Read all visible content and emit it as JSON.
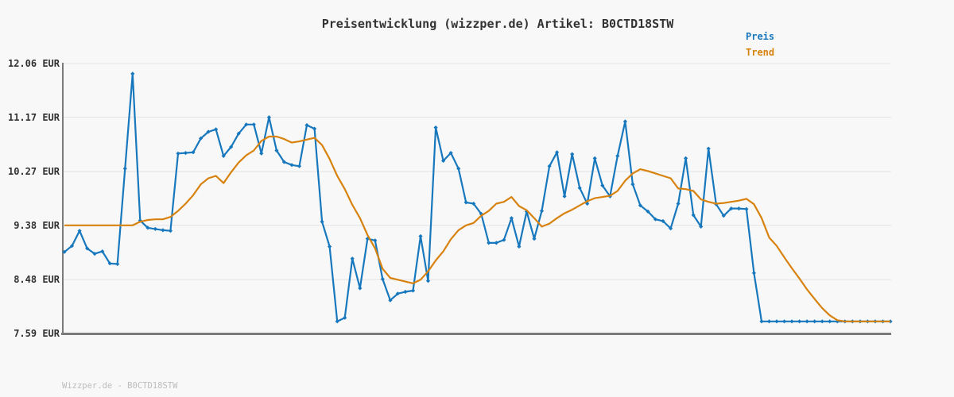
{
  "title": "Preisentwicklung (wizzper.de) Artikel: B0CTD18STW",
  "legend": {
    "preis": "Preis",
    "trend": "Trend"
  },
  "footer": "Wizzper.de - B0CTD18STW",
  "colors": {
    "preis": "#1878be",
    "trend": "#d8820e",
    "grid": "#e3e3e3",
    "axis": "#7a7a7a",
    "background": "#f8f8f8",
    "title_text": "#333333",
    "tick_text": "#303030",
    "footer_text": "#bcbcbc"
  },
  "y_axis": {
    "unit": "EUR",
    "ticks": [
      {
        "label": "12.06 EUR",
        "value": 12.06
      },
      {
        "label": "11.17 EUR",
        "value": 11.17
      },
      {
        "label": "10.27 EUR",
        "value": 10.27
      },
      {
        "label": "9.38 EUR",
        "value": 9.38
      },
      {
        "label": "8.48 EUR",
        "value": 8.48
      },
      {
        "label": "7.59 EUR",
        "value": 7.59
      }
    ]
  },
  "chart_data": {
    "type": "line",
    "title": "Preisentwicklung (wizzper.de) Artikel: B0CTD18STW",
    "xlabel": "",
    "ylabel": "EUR",
    "ylim": [
      7.59,
      12.06
    ],
    "grid": true,
    "legend_position": "top-right",
    "x_note": "time index, no x tick labels shown",
    "series": [
      {
        "name": "Preis",
        "color": "#1878be",
        "markers": true,
        "values": [
          8.94,
          9.04,
          9.29,
          9.0,
          8.91,
          8.95,
          8.75,
          8.74,
          10.32,
          11.89,
          9.46,
          9.34,
          9.32,
          9.3,
          9.29,
          10.57,
          10.58,
          10.59,
          10.82,
          10.93,
          10.97,
          10.53,
          10.68,
          10.9,
          11.05,
          11.05,
          10.57,
          11.17,
          10.62,
          10.43,
          10.38,
          10.36,
          11.04,
          10.98,
          9.44,
          9.03,
          7.79,
          7.85,
          8.83,
          8.34,
          9.16,
          9.13,
          8.49,
          8.14,
          8.25,
          8.28,
          8.3,
          9.2,
          8.46,
          11.0,
          10.45,
          10.58,
          10.32,
          9.76,
          9.74,
          9.57,
          9.09,
          9.09,
          9.14,
          9.5,
          9.03,
          9.61,
          9.16,
          9.62,
          10.36,
          10.59,
          9.86,
          10.56,
          10.0,
          9.74,
          10.49,
          10.04,
          9.86,
          10.53,
          11.1,
          10.06,
          9.71,
          9.61,
          9.48,
          9.45,
          9.33,
          9.74,
          10.49,
          9.55,
          9.36,
          10.65,
          9.73,
          9.54,
          9.66,
          9.66,
          9.65,
          8.59,
          7.79,
          7.79,
          7.79,
          7.79,
          7.79,
          7.79,
          7.79,
          7.79,
          7.79,
          7.79,
          7.79,
          7.79,
          7.79,
          7.79,
          7.79,
          7.79,
          7.79,
          7.79
        ]
      },
      {
        "name": "Trend",
        "color": "#d8820e",
        "markers": false,
        "values": [
          9.38,
          9.38,
          9.38,
          9.38,
          9.38,
          9.38,
          9.38,
          9.38,
          9.38,
          9.38,
          9.44,
          9.47,
          9.48,
          9.48,
          9.52,
          9.62,
          9.74,
          9.88,
          10.06,
          10.16,
          10.2,
          10.08,
          10.26,
          10.42,
          10.54,
          10.62,
          10.78,
          10.85,
          10.85,
          10.81,
          10.75,
          10.77,
          10.8,
          10.83,
          10.71,
          10.48,
          10.2,
          9.98,
          9.72,
          9.5,
          9.22,
          9.0,
          8.66,
          8.51,
          8.48,
          8.45,
          8.42,
          8.48,
          8.62,
          8.8,
          8.95,
          9.15,
          9.3,
          9.38,
          9.42,
          9.54,
          9.62,
          9.74,
          9.77,
          9.85,
          9.7,
          9.63,
          9.5,
          9.36,
          9.41,
          9.5,
          9.58,
          9.64,
          9.71,
          9.78,
          9.83,
          9.85,
          9.87,
          9.95,
          10.12,
          10.24,
          10.31,
          10.28,
          10.24,
          10.2,
          10.16,
          9.99,
          9.98,
          9.95,
          9.81,
          9.77,
          9.74,
          9.75,
          9.77,
          9.79,
          9.82,
          9.73,
          9.5,
          9.18,
          9.04,
          8.85,
          8.67,
          8.5,
          8.32,
          8.16,
          8.01,
          7.89,
          7.81,
          7.79,
          7.79,
          7.79,
          7.79,
          7.79,
          7.79,
          7.79
        ]
      }
    ]
  }
}
